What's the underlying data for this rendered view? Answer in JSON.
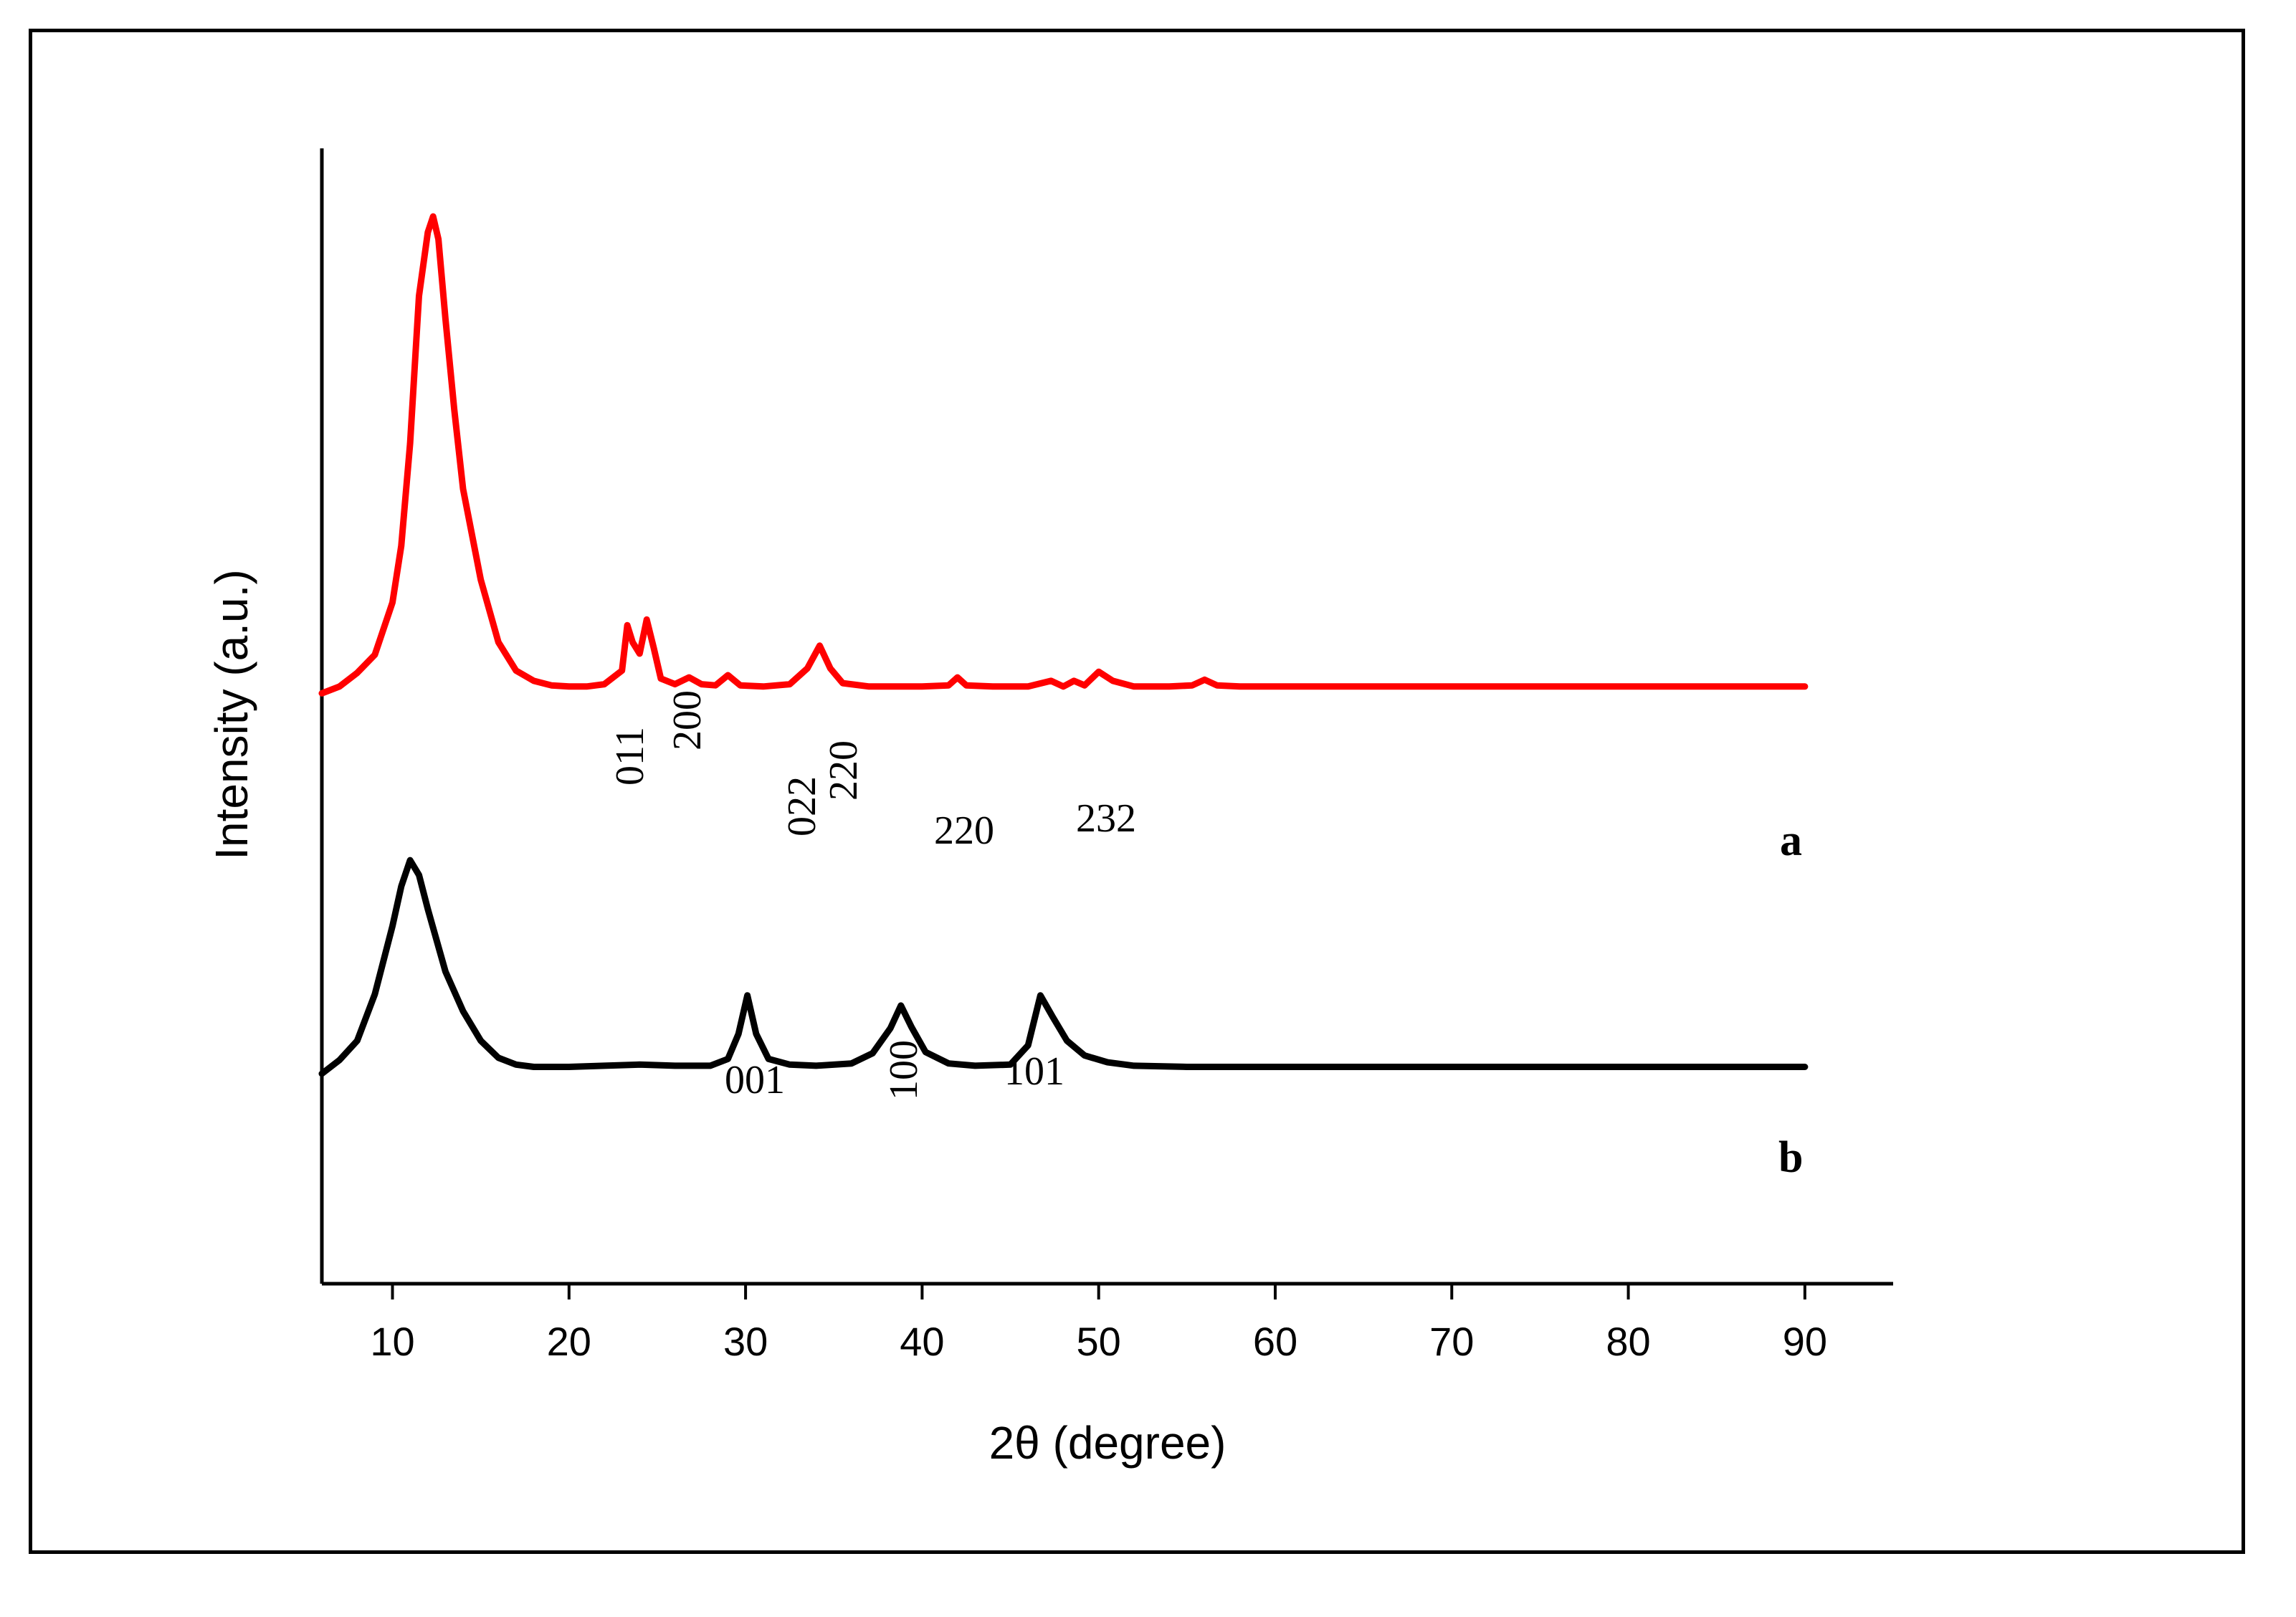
{
  "chart_data": {
    "type": "line",
    "title": "",
    "xlabel": "2θ (degree)",
    "ylabel": "Intensity (a.u.)",
    "xlim": [
      6,
      95
    ],
    "ylim": [
      0,
      100
    ],
    "grid": false,
    "x_ticks": [
      "10",
      "20",
      "30",
      "40",
      "50",
      "60",
      "70",
      "80",
      "90"
    ],
    "x_tick_values": [
      10,
      20,
      30,
      40,
      50,
      60,
      70,
      80,
      90
    ],
    "series": [
      {
        "name": "a",
        "color": "#ff0000",
        "x": [
          6,
          7,
          8,
          9,
          10,
          10.5,
          11,
          11.5,
          12,
          12.3,
          12.6,
          13,
          13.5,
          14,
          15,
          16,
          17,
          18,
          19,
          20,
          21,
          22,
          23,
          23.3,
          23.6,
          24,
          24.4,
          24.8,
          25.2,
          26,
          26.8,
          27.5,
          28.3,
          29,
          29.7,
          31,
          32.5,
          33.5,
          34.2,
          34.8,
          35.5,
          37,
          40,
          41.5,
          42,
          42.5,
          44,
          46,
          47.3,
          48,
          48.6,
          49.2,
          50,
          50.8,
          52,
          54,
          55.3,
          56,
          56.7,
          58,
          62,
          66,
          70,
          75,
          80,
          85,
          90
        ],
        "y": [
          52,
          52.6,
          53.8,
          55.4,
          60,
          65,
          74,
          87,
          92.6,
          94,
          92,
          85,
          77,
          70,
          62,
          56.5,
          54,
          53.1,
          52.7,
          52.6,
          52.6,
          52.8,
          54,
          58,
          56.5,
          55.5,
          58.5,
          56,
          53.3,
          52.8,
          53.4,
          52.8,
          52.7,
          53.6,
          52.7,
          52.6,
          52.8,
          54.2,
          56.2,
          54.2,
          52.9,
          52.6,
          52.6,
          52.7,
          53.4,
          52.7,
          52.6,
          52.6,
          53.1,
          52.6,
          53.1,
          52.7,
          53.9,
          53.1,
          52.6,
          52.6,
          52.7,
          53.2,
          52.7,
          52.6,
          52.6,
          52.6,
          52.6,
          52.6,
          52.6,
          52.6,
          52.6
        ],
        "peak_labels": [
          "011",
          "200",
          "022",
          "220",
          "220",
          "232"
        ],
        "peak_positions": [
          23.3,
          24.4,
          33.3,
          34.5,
          42,
          50
        ]
      },
      {
        "name": "b",
        "color": "#000000",
        "x": [
          6,
          7,
          8,
          9,
          10,
          10.5,
          11,
          11.5,
          12,
          13,
          14,
          15,
          16,
          17,
          18,
          20,
          22,
          24,
          26,
          28,
          29,
          29.6,
          30.1,
          30.6,
          31.3,
          32.5,
          34,
          36,
          37.2,
          38.2,
          38.8,
          39.4,
          40.2,
          41.5,
          43,
          45,
          46,
          46.7,
          47.4,
          48.2,
          49.2,
          50.5,
          52,
          55,
          60,
          70,
          80,
          90
        ],
        "y": [
          18.5,
          19.7,
          21.4,
          25.5,
          31.5,
          35,
          37.3,
          36,
          33,
          27.5,
          24,
          21.4,
          19.9,
          19.3,
          19.1,
          19.1,
          19.2,
          19.3,
          19.2,
          19.2,
          19.8,
          22,
          25.4,
          22,
          19.8,
          19.3,
          19.2,
          19.4,
          20.3,
          22.5,
          24.5,
          22.6,
          20.4,
          19.4,
          19.2,
          19.3,
          21,
          25.4,
          23.5,
          21.4,
          20.1,
          19.5,
          19.2,
          19.1,
          19.1,
          19.1,
          19.1,
          19.1
        ],
        "peak_labels": [
          "001",
          "100",
          "101"
        ],
        "peak_positions": [
          30.1,
          38.8,
          46.7
        ]
      }
    ]
  }
}
